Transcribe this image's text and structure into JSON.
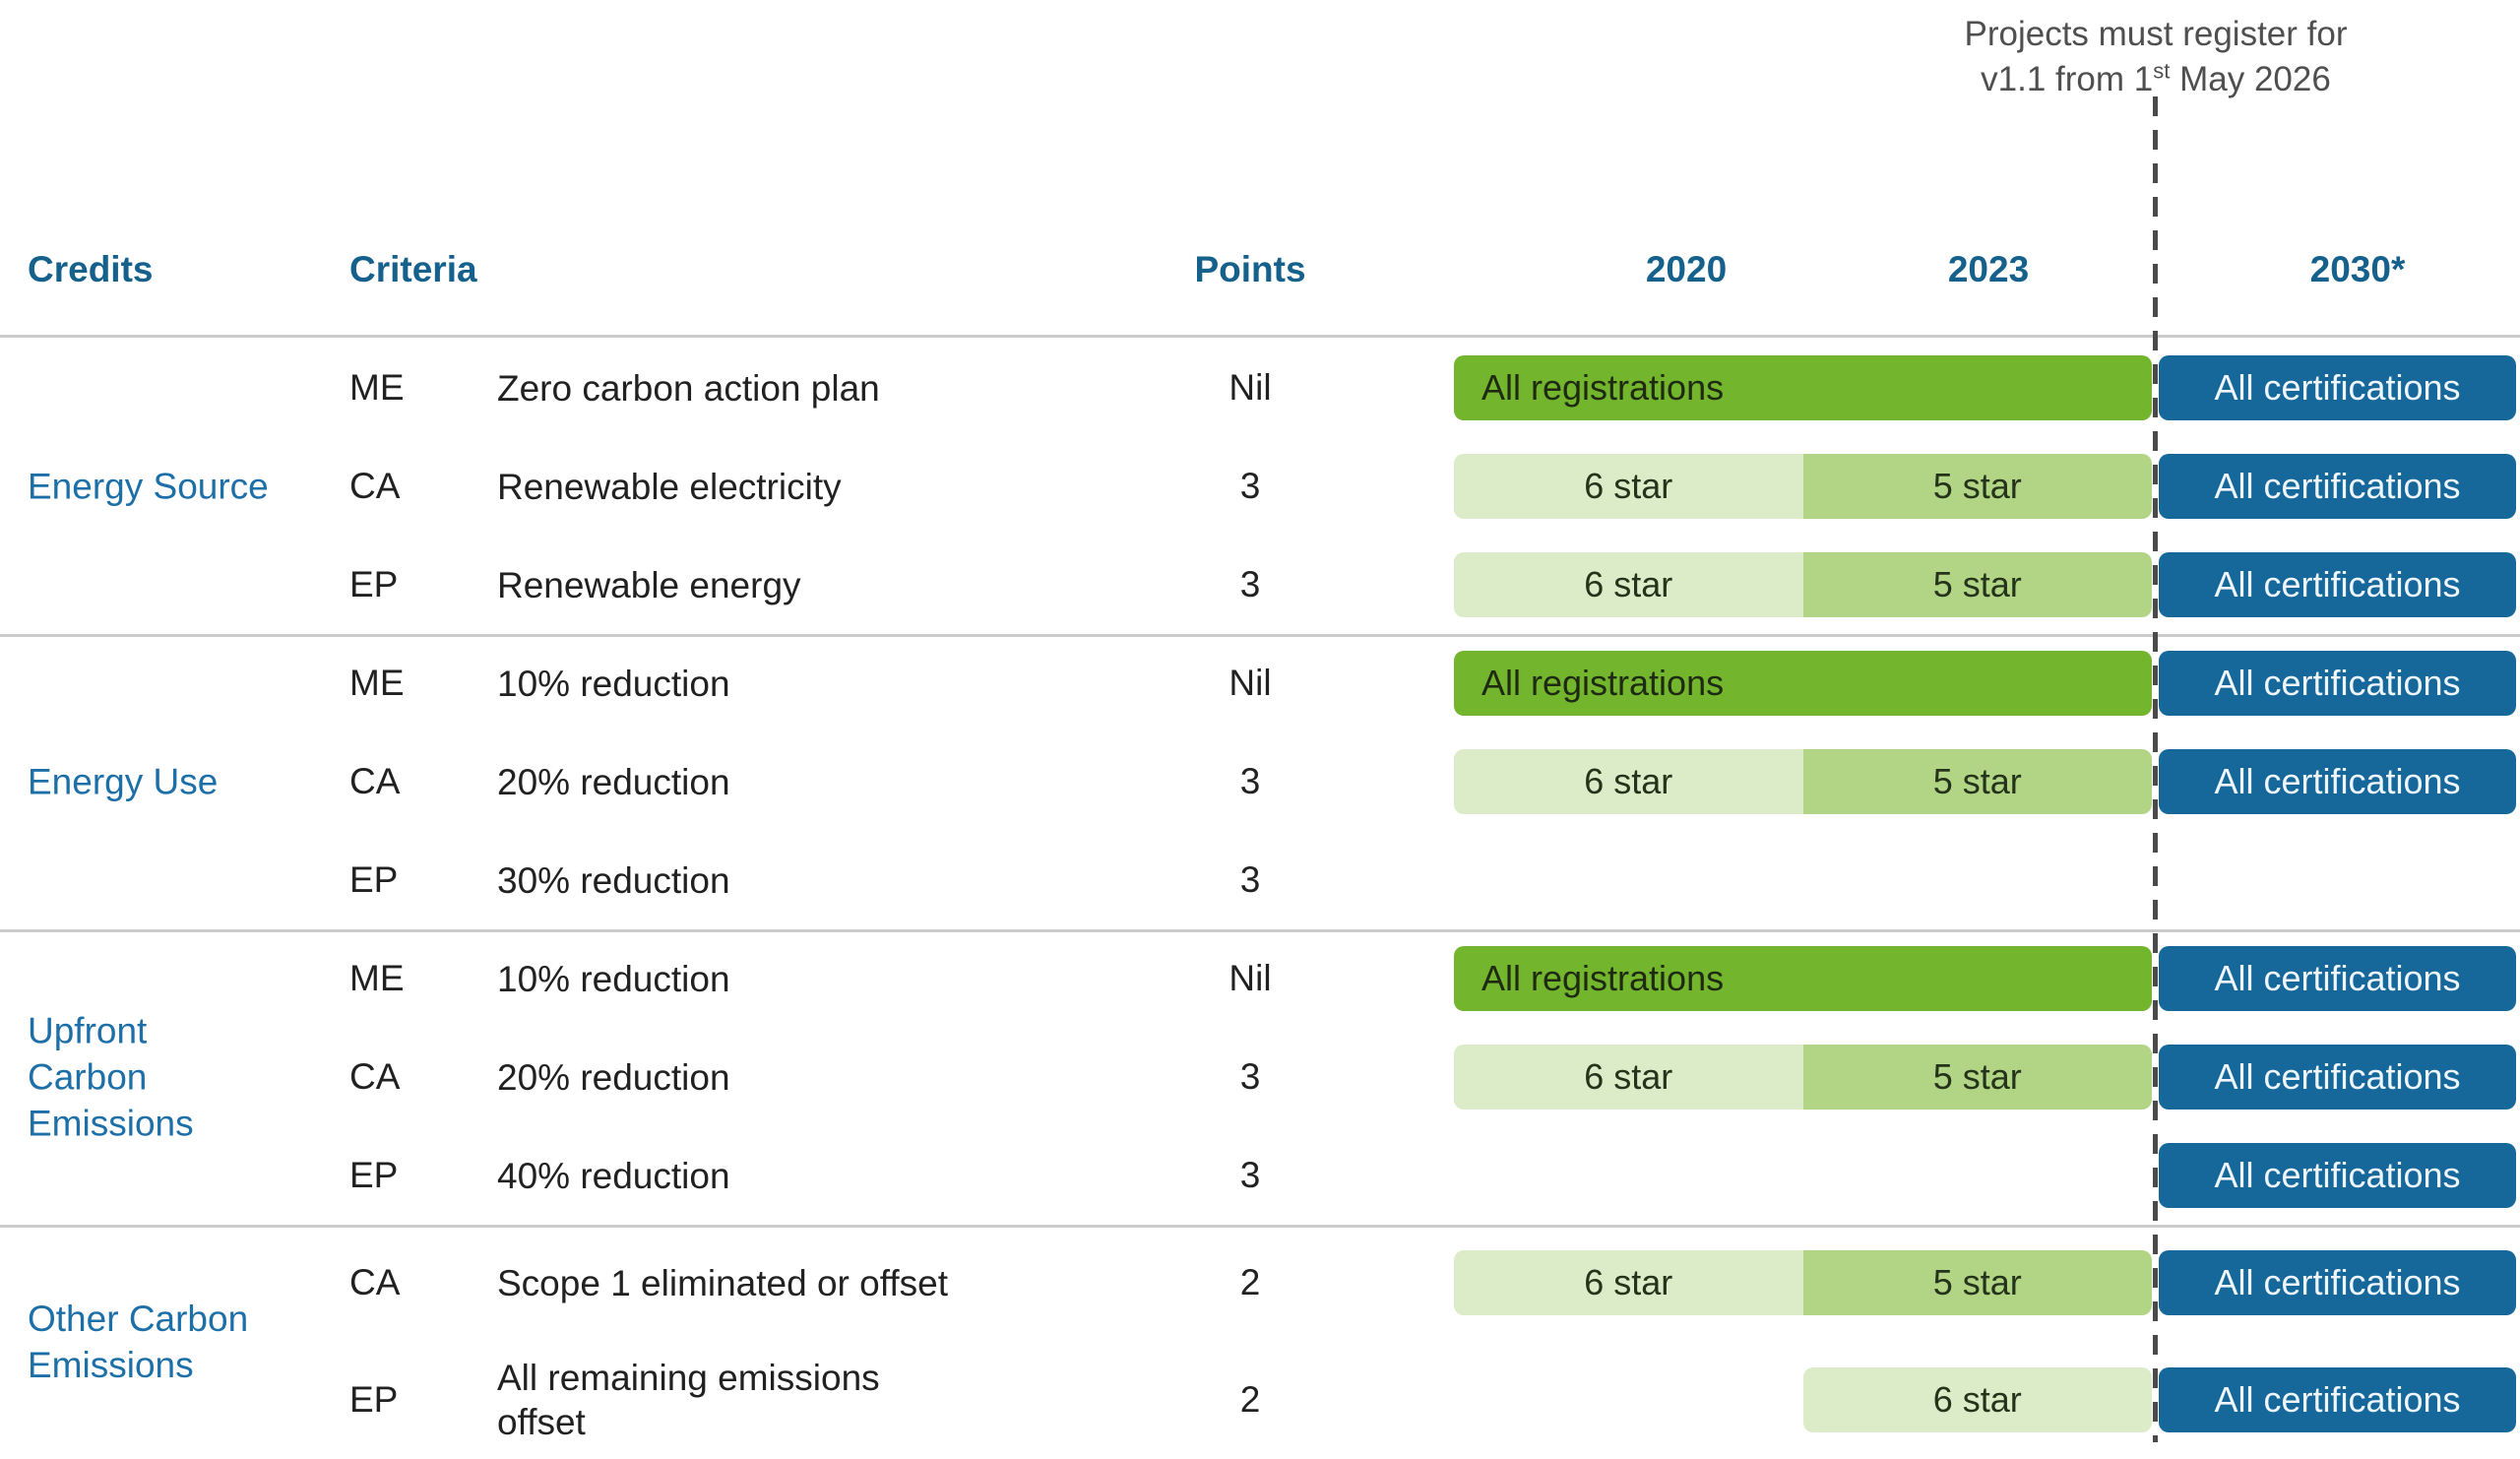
{
  "annotation": {
    "line1": "Projects must register for",
    "line2_pre": "v1.1 from 1",
    "line2_sup": "st",
    "line2_post": " May 2026"
  },
  "header": {
    "credits": "Credits",
    "criteria": "Criteria",
    "points": "Points",
    "year_2020": "2020",
    "year_2023": "2023",
    "year_2030": "2030*"
  },
  "bar_labels": {
    "all_registrations": "All registrations",
    "all_certifications": "All certifications",
    "six_star": "6 star",
    "five_star": "5 star"
  },
  "groups": [
    {
      "label": "Energy Source",
      "rows": [
        {
          "code": "ME",
          "criteria": "Zero carbon action plan",
          "points": "Nil",
          "bar_2020_2023": "All registrations",
          "bar_2030": "All certifications"
        },
        {
          "code": "CA",
          "criteria": "Renewable electricity",
          "points": "3",
          "bar_2020": "6 star",
          "bar_2023": "5 star",
          "bar_2030": "All certifications"
        },
        {
          "code": "EP",
          "criteria": "Renewable energy",
          "points": "3",
          "bar_2020": "6 star",
          "bar_2023": "5 star",
          "bar_2030": "All certifications"
        }
      ]
    },
    {
      "label": "Energy Use",
      "rows": [
        {
          "code": "ME",
          "criteria": "10% reduction",
          "points": "Nil",
          "bar_2020_2023": "All registrations",
          "bar_2030": "All certifications"
        },
        {
          "code": "CA",
          "criteria": "20% reduction",
          "points": "3",
          "bar_2020": "6 star",
          "bar_2023": "5 star",
          "bar_2030": "All certifications"
        },
        {
          "code": "EP",
          "criteria": "30% reduction",
          "points": "3"
        }
      ]
    },
    {
      "label": "Upfront\nCarbon\nEmissions",
      "rows": [
        {
          "code": "ME",
          "criteria": "10% reduction",
          "points": "Nil",
          "bar_2020_2023": "All registrations",
          "bar_2030": "All certifications"
        },
        {
          "code": "CA",
          "criteria": "20% reduction",
          "points": "3",
          "bar_2020": "6 star",
          "bar_2023": "5 star",
          "bar_2030": "All certifications"
        },
        {
          "code": "EP",
          "criteria": "40% reduction",
          "points": "3",
          "bar_2030": "All certifications"
        }
      ]
    },
    {
      "label": "Other Carbon\nEmissions",
      "rows": [
        {
          "code": "CA",
          "criteria": "Scope 1 eliminated or offset",
          "points": "2",
          "bar_2020": "6 star",
          "bar_2023": "5 star",
          "bar_2030": "All certifications"
        },
        {
          "code": "EP",
          "criteria": "All remaining emissions\noffset",
          "points": "2",
          "bar_2023": "6 star",
          "bar_2030": "All certifications"
        }
      ]
    }
  ],
  "colors": {
    "dark_green_bar": "#74b52e",
    "light_green_bar": "#dcebc8",
    "mid_green_bar": "#b1d584",
    "blue_bar": "#16679a",
    "header_text": "#16618c",
    "group_label_text": "#1d6fa8",
    "body_text": "#212121",
    "annotation_text": "#4f4f4f",
    "separator_line": "#cbcbcb",
    "dashed_line": "#4a4a4a"
  },
  "chart_data": {
    "type": "table",
    "title": "Credits and criteria across versions with registration deadline",
    "annotation": "Projects must register for v1.1 from 1st May 2026",
    "columns": [
      "Credits",
      "Criteria code",
      "Criteria",
      "Points",
      "2020",
      "2023",
      "2030*"
    ],
    "rows": [
      [
        "Energy Source",
        "ME",
        "Zero carbon action plan",
        "Nil",
        "All registrations",
        "All registrations",
        "All certifications"
      ],
      [
        "Energy Source",
        "CA",
        "Renewable electricity",
        "3",
        "6 star",
        "5 star",
        "All certifications"
      ],
      [
        "Energy Source",
        "EP",
        "Renewable energy",
        "3",
        "6 star",
        "5 star",
        "All certifications"
      ],
      [
        "Energy Use",
        "ME",
        "10% reduction",
        "Nil",
        "All registrations",
        "All registrations",
        "All certifications"
      ],
      [
        "Energy Use",
        "CA",
        "20% reduction",
        "3",
        "6 star",
        "5 star",
        "All certifications"
      ],
      [
        "Energy Use",
        "EP",
        "30% reduction",
        "3",
        "",
        "",
        ""
      ],
      [
        "Upfront Carbon Emissions",
        "ME",
        "10% reduction",
        "Nil",
        "All registrations",
        "All registrations",
        "All certifications"
      ],
      [
        "Upfront Carbon Emissions",
        "CA",
        "20% reduction",
        "3",
        "6 star",
        "5 star",
        "All certifications"
      ],
      [
        "Upfront Carbon Emissions",
        "EP",
        "40% reduction",
        "3",
        "",
        "",
        "All certifications"
      ],
      [
        "Other Carbon Emissions",
        "CA",
        "Scope 1 eliminated or offset",
        "2",
        "6 star",
        "5 star",
        "All certifications"
      ],
      [
        "Other Carbon Emissions",
        "EP",
        "All remaining emissions offset",
        "2",
        "",
        "6 star",
        "All certifications"
      ]
    ],
    "legend_position": "none",
    "grid": "horizontal separators only"
  }
}
